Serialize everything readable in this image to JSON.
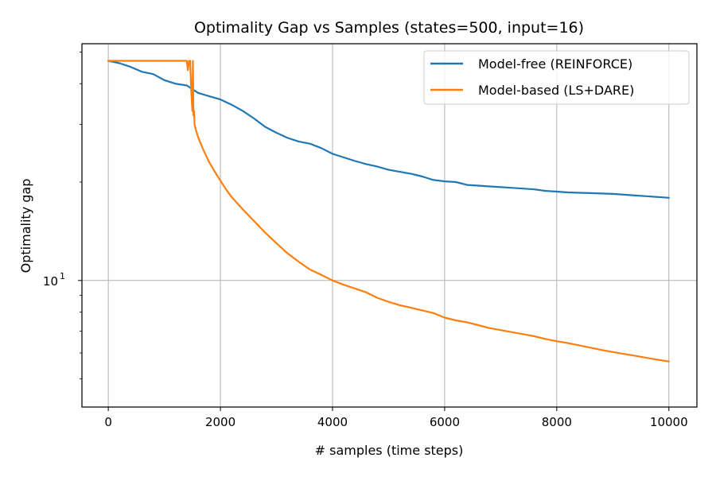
{
  "chart_data": {
    "type": "line",
    "title": "Optimality Gap vs Samples  (states=500, input=16)",
    "xlabel": "# samples (time steps)",
    "ylabel": "Optimality gap",
    "xlim": [
      -470,
      10500
    ],
    "ylim": [
      4.1,
      53
    ],
    "yscale": "log",
    "grid": true,
    "legend_position": "top-right",
    "x_ticks": [
      0,
      2000,
      4000,
      6000,
      8000,
      10000
    ],
    "x_tick_labels": [
      "0",
      "2000",
      "4000",
      "6000",
      "8000",
      "10000"
    ],
    "y_ticks": [
      10
    ],
    "y_tick_labels": [
      {
        "base": "10",
        "exp": "1"
      }
    ],
    "y_minor_ticks": [
      5,
      6,
      7,
      8,
      9,
      20,
      30,
      40,
      50
    ],
    "series": [
      {
        "name": "Model-free (REINFORCE)",
        "color": "#1f77b4",
        "x": [
          0,
          200,
          400,
          600,
          800,
          1000,
          1200,
          1400,
          1600,
          1800,
          2000,
          2200,
          2400,
          2600,
          2800,
          3000,
          3200,
          3400,
          3600,
          3800,
          4000,
          4200,
          4400,
          4600,
          4800,
          5000,
          5200,
          5400,
          5600,
          5800,
          6000,
          6200,
          6400,
          6600,
          6800,
          7000,
          7200,
          7400,
          7600,
          7800,
          8000,
          8200,
          8400,
          8600,
          8800,
          9000,
          9200,
          9400,
          9600,
          9800,
          10000
        ],
        "y": [
          47.0,
          46.2,
          45.0,
          43.5,
          42.8,
          41.0,
          40.0,
          39.5,
          37.5,
          36.6,
          35.8,
          34.5,
          33.0,
          31.3,
          29.5,
          28.3,
          27.3,
          26.6,
          26.2,
          25.4,
          24.4,
          23.8,
          23.2,
          22.7,
          22.3,
          21.8,
          21.5,
          21.2,
          20.8,
          20.3,
          20.1,
          20.0,
          19.6,
          19.5,
          19.4,
          19.3,
          19.2,
          19.1,
          19.0,
          18.8,
          18.7,
          18.6,
          18.55,
          18.5,
          18.45,
          18.4,
          18.3,
          18.2,
          18.1,
          18.0,
          17.9
        ]
      },
      {
        "name": "Model-based (LS+DARE)",
        "color": "#ff7f0e",
        "x": [
          0,
          200,
          400,
          600,
          800,
          1000,
          1200,
          1400,
          1420,
          1440,
          1460,
          1480,
          1500,
          1510,
          1520,
          1530,
          1540,
          1560,
          1600,
          1700,
          1800,
          1900,
          2000,
          2100,
          2200,
          2400,
          2600,
          2800,
          3000,
          3200,
          3400,
          3600,
          3800,
          4000,
          4200,
          4400,
          4600,
          4800,
          5000,
          5200,
          5400,
          5600,
          5800,
          6000,
          6200,
          6400,
          6600,
          6800,
          7000,
          7200,
          7400,
          7600,
          7800,
          8000,
          8200,
          8400,
          8600,
          8800,
          9000,
          9200,
          9400,
          9600,
          9800,
          10000
        ],
        "y": [
          47.0,
          47.0,
          47.0,
          47.0,
          47.0,
          47.0,
          47.0,
          47.0,
          44.0,
          47.0,
          47.0,
          38.0,
          33.0,
          47.0,
          32.0,
          33.0,
          30.0,
          29.0,
          27.5,
          25.0,
          23.0,
          21.5,
          20.2,
          19.0,
          18.0,
          16.5,
          15.2,
          14.0,
          13.0,
          12.1,
          11.4,
          10.8,
          10.4,
          10.0,
          9.7,
          9.45,
          9.2,
          8.85,
          8.6,
          8.4,
          8.25,
          8.1,
          7.95,
          7.7,
          7.55,
          7.45,
          7.3,
          7.15,
          7.05,
          6.95,
          6.85,
          6.75,
          6.62,
          6.52,
          6.43,
          6.33,
          6.23,
          6.13,
          6.04,
          5.96,
          5.88,
          5.8,
          5.72,
          5.65
        ]
      }
    ]
  }
}
